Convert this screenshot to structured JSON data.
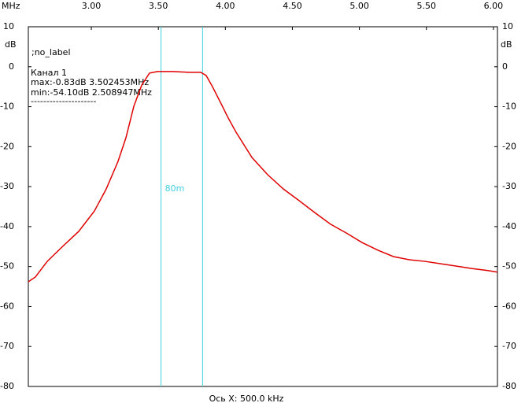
{
  "chart_data": {
    "type": "line",
    "xunit": "MHz",
    "yunit": "dB",
    "xlabel": "Ось X: 500.0 kHz",
    "annotations": [
      ";no_label",
      "max:-0.83dB 3.502453MHz",
      "min:-54.10dB 2.508947MHz",
      "---------------------"
    ],
    "markers": [
      3.52,
      3.83
    ],
    "marker_label": "80m",
    "marker_color": "#40d0e0",
    "x": [
      2.53,
      2.583,
      2.671,
      2.788,
      2.906,
      3.023,
      3.111,
      3.199,
      3.258,
      3.317,
      3.376,
      3.434,
      3.493,
      3.61,
      3.728,
      3.816,
      3.857,
      3.904,
      3.963,
      4.021,
      4.08,
      4.198,
      4.315,
      4.433,
      4.55,
      4.667,
      4.785,
      4.902,
      5.02,
      5.137,
      5.254,
      5.372,
      5.489,
      5.607,
      5.724,
      5.842,
      5.959,
      6.03
    ],
    "series": [
      {
        "name": "Канал 1",
        "color": "#e00000",
        "values": [
          -53.8,
          -52.6,
          -48.7,
          -44.9,
          -41.2,
          -36.1,
          -30.6,
          -23.7,
          -17.8,
          -9.9,
          -4.6,
          -1.6,
          -1.2,
          -1.2,
          -1.4,
          -1.4,
          -2.2,
          -5.0,
          -8.9,
          -12.8,
          -16.4,
          -22.7,
          -27.0,
          -30.6,
          -33.5,
          -36.5,
          -39.4,
          -41.6,
          -44.0,
          -45.9,
          -47.5,
          -48.3,
          -48.7,
          -49.3,
          -49.9,
          -50.5,
          -51.0,
          -51.4
        ]
      }
    ],
    "xlim": [
      2.53,
      6.03
    ],
    "xticks": [
      {
        "value": 3,
        "label": "3.00"
      },
      {
        "value": 3.5,
        "label": "3.50"
      },
      {
        "value": 4,
        "label": "4.00"
      },
      {
        "value": 4.5,
        "label": "4.50"
      },
      {
        "value": 5,
        "label": "5.00"
      },
      {
        "value": 5.5,
        "label": "5.50"
      },
      {
        "value": 6,
        "label": "6.00"
      }
    ],
    "ylim": [
      -80,
      10
    ],
    "yticks": [
      10,
      0,
      -10,
      -20,
      -30,
      -40,
      -50,
      -60,
      -70,
      -80
    ]
  }
}
